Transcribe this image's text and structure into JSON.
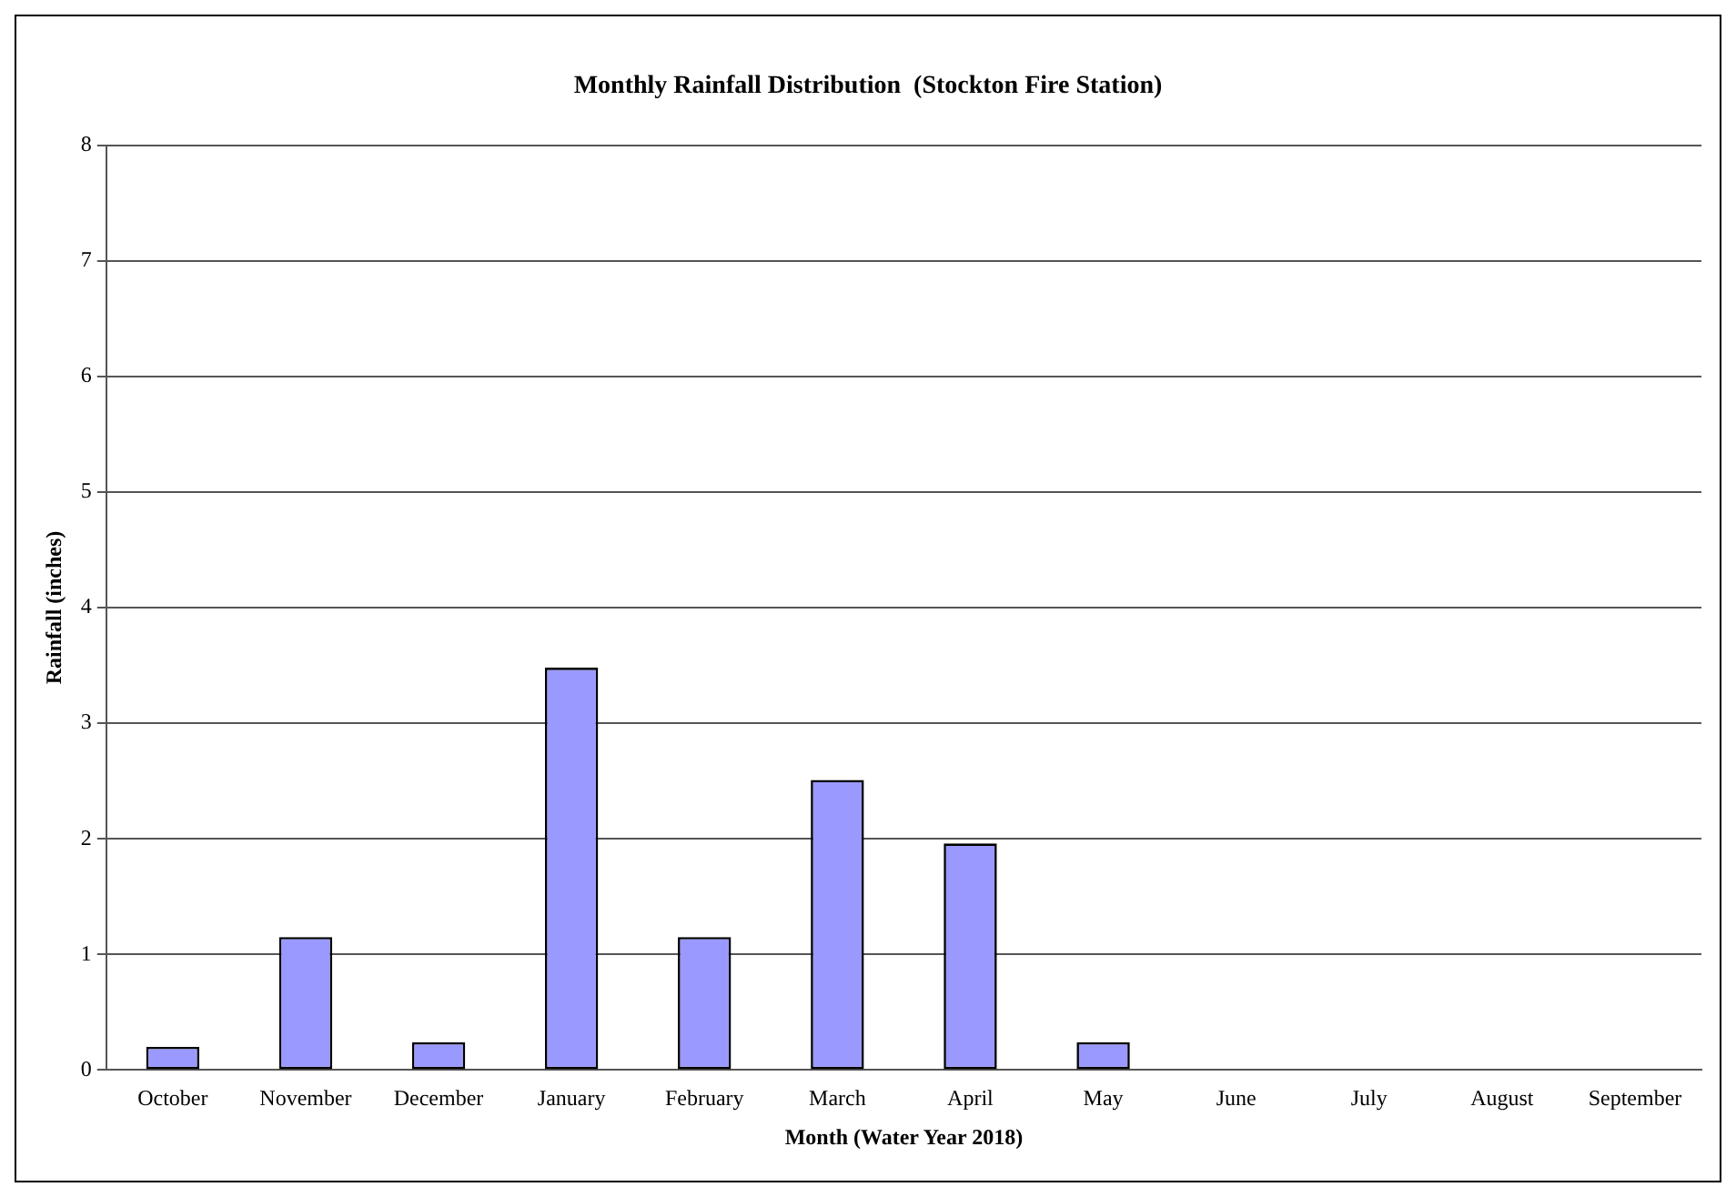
{
  "chart_data": {
    "type": "bar",
    "title": "Monthly Rainfall Distribution  (Stockton Fire Station)",
    "xlabel": "Month (Water Year 2018)",
    "ylabel": "Rainfall (inches)",
    "categories": [
      "October",
      "November",
      "December",
      "January",
      "February",
      "March",
      "April",
      "May",
      "June",
      "July",
      "August",
      "September"
    ],
    "values": [
      0.2,
      1.15,
      0.24,
      3.48,
      1.15,
      2.51,
      1.96,
      0.24,
      0,
      0,
      0,
      0
    ],
    "color": "#9999ff",
    "ylim": [
      0,
      8
    ],
    "yticks": [
      0,
      1,
      2,
      3,
      4,
      5,
      6,
      7,
      8
    ],
    "grid": "y",
    "legend": false
  }
}
